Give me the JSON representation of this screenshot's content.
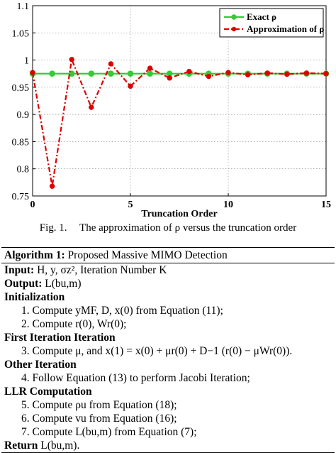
{
  "chart_data": {
    "type": "line",
    "xlabel": "Truncation Order",
    "ylabel": "",
    "xlim": [
      0,
      15
    ],
    "ylim": [
      0.75,
      1.1
    ],
    "x_ticks": [
      "0",
      "5",
      "10",
      "15"
    ],
    "y_ticks": [
      "0.75",
      "0.8",
      "0.85",
      "0.9",
      "0.95",
      "1",
      "1.05",
      "1.1"
    ],
    "grid": true,
    "legend_position": "top-right",
    "x": [
      0,
      1,
      2,
      3,
      4,
      5,
      6,
      7,
      8,
      9,
      10,
      11,
      12,
      13,
      14,
      15
    ],
    "series": [
      {
        "name": "Exact ρ",
        "color": "#33cc33",
        "values": [
          0.975,
          0.975,
          0.975,
          0.975,
          0.975,
          0.975,
          0.975,
          0.975,
          0.975,
          0.975,
          0.975,
          0.975,
          0.975,
          0.975,
          0.975,
          0.975
        ]
      },
      {
        "name": "Approximation of ρ",
        "color": "#dd0000",
        "values": [
          0.977,
          0.768,
          1.001,
          0.913,
          0.993,
          0.952,
          0.985,
          0.967,
          0.979,
          0.97,
          0.977,
          0.973,
          0.976,
          0.974,
          0.976,
          0.975
        ]
      }
    ]
  },
  "caption": {
    "label": "Fig. 1.",
    "text": "The approximation of ρ versus the truncation order"
  },
  "algorithm": {
    "title_bold": "Algorithm 1:",
    "title_text": "Proposed Massive MIMO Detection",
    "input_label": "Input:",
    "input_text": "H, y, σz², Iteration Number K",
    "output_label": "Output:",
    "output_text": "L(bu,m)",
    "init_header": "Initialization",
    "step1": "1. Compute yMF, D, x(0) from Equation (11);",
    "step2": "2. Compute r(0), Wr(0);",
    "first_header": "First Iteration Iteration",
    "step3": "3. Compute μ, and x(1) = x(0) + μr(0) + D−1 (r(0) − μWr(0)).",
    "other_header": "Other Iteration",
    "step4": "4. Follow Equation (13) to perform Jacobi Iteration;",
    "llr_header": "LLR Computation",
    "step5": "5. Compute ρu from Equation (18);",
    "step6": "6. Compute vu from Equation (16);",
    "step7": "7. Compute L(bu,m) from Equation (7);",
    "return_label": "Return",
    "return_text": "L(bu,m)."
  }
}
